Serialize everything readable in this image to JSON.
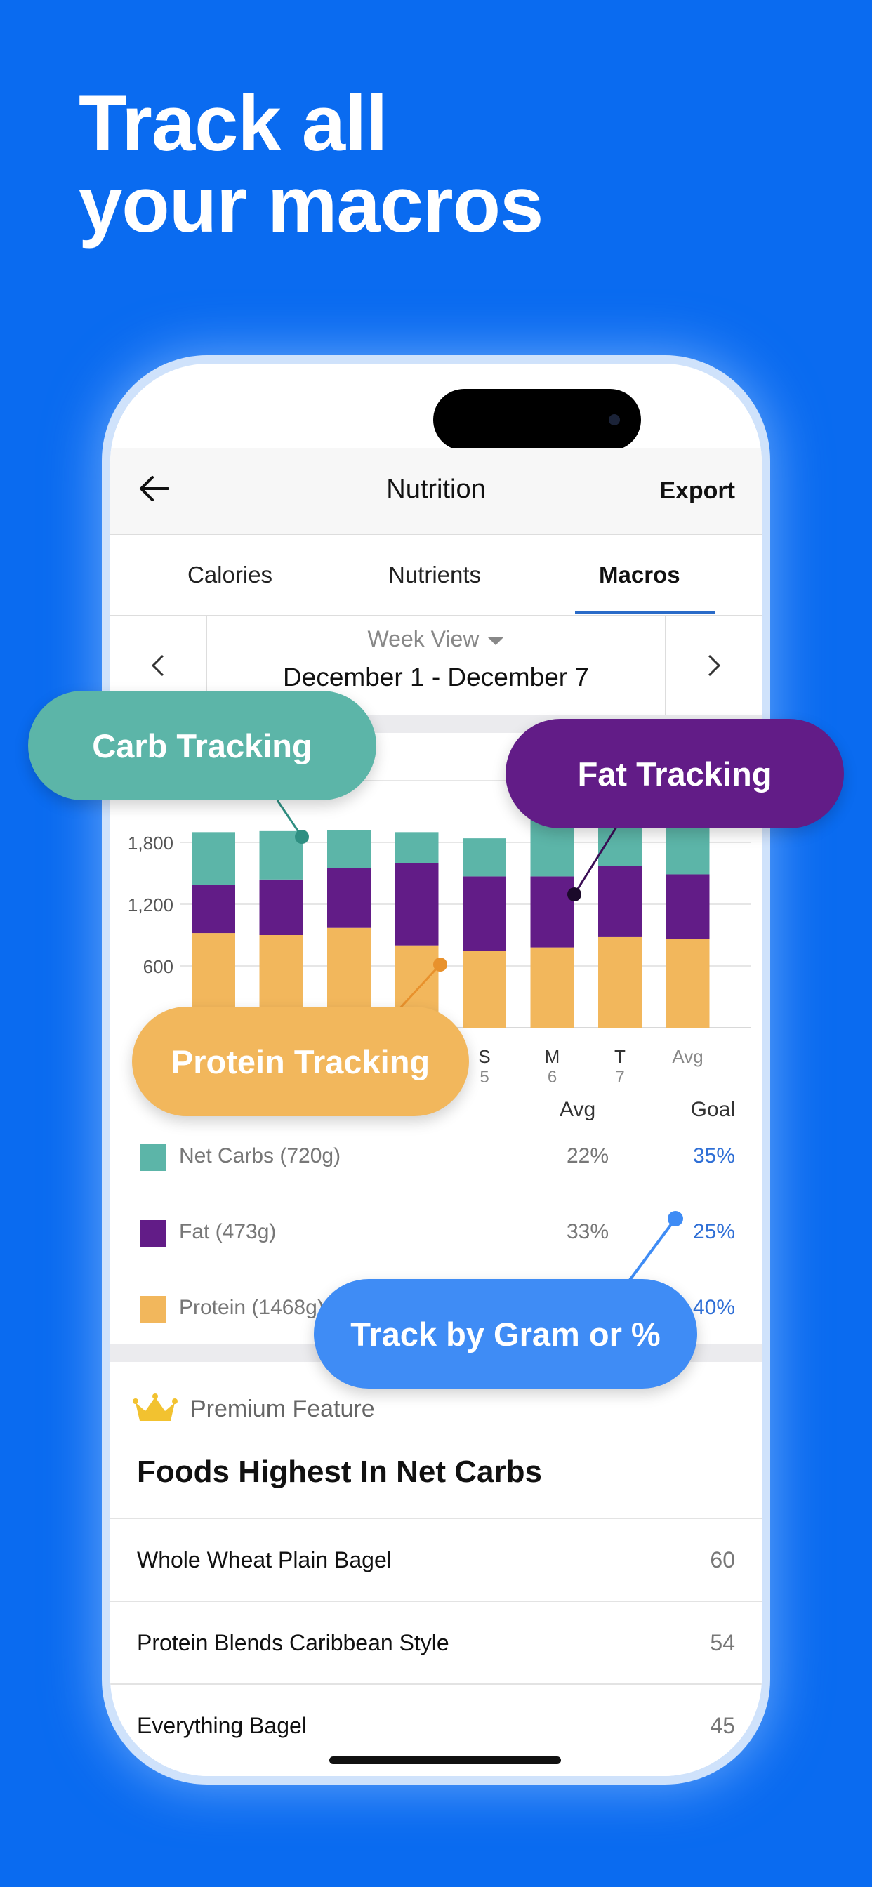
{
  "headline": {
    "line1": "Track all",
    "line2": "your macros"
  },
  "nav": {
    "title": "Nutrition",
    "export_label": "Export",
    "back_icon": "arrow-left-icon"
  },
  "tabs": [
    {
      "label": "Calories",
      "active": false
    },
    {
      "label": "Nutrients",
      "active": false
    },
    {
      "label": "Macros",
      "active": true
    }
  ],
  "date": {
    "view_label": "Week View",
    "range": "December 1 - December 7"
  },
  "legend": {
    "avg_header": "Avg",
    "goal_header": "Goal",
    "items": [
      {
        "label": "Net Carbs (720g)",
        "avg": "22%",
        "goal": "35%",
        "color": "#5cb5a8"
      },
      {
        "label": "Fat (473g)",
        "avg": "33%",
        "goal": "25%",
        "color": "#621c87"
      },
      {
        "label": "Protein (1468g)",
        "avg": "",
        "goal": "40%",
        "color": "#f2b75c"
      }
    ]
  },
  "callouts": {
    "carb": "Carb Tracking",
    "fat": "Fat Tracking",
    "protein": "Protein Tracking",
    "gram": "Track by Gram or %"
  },
  "premium": {
    "label": "Premium Feature",
    "icon": "crown-icon",
    "title": "Foods Highest In Net Carbs",
    "foods": [
      {
        "name": "Whole Wheat Plain Bagel",
        "value": "60"
      },
      {
        "name": "Protein Blends Caribbean Style",
        "value": "54"
      },
      {
        "name": "Everything Bagel",
        "value": "45"
      }
    ]
  },
  "colors": {
    "background": "#0a6bf0",
    "carb": "#5cb5a8",
    "fat": "#621c87",
    "protein": "#f2b75c",
    "goal_text": "#2f6fd6",
    "gram_callout": "#3f8cf5"
  },
  "chart_data": {
    "type": "bar",
    "stacked": true,
    "categories": [
      "",
      "",
      "",
      "",
      "S 5",
      "M 6",
      "T 7",
      "Avg"
    ],
    "x_tick_labels": [
      {
        "day": "S",
        "date": "5"
      },
      {
        "day": "M",
        "date": "6"
      },
      {
        "day": "T",
        "date": "7"
      },
      {
        "day": "Avg",
        "date": ""
      }
    ],
    "series": [
      {
        "name": "Protein",
        "color": "#f2b75c",
        "values": [
          920,
          900,
          970,
          800,
          750,
          780,
          880,
          860
        ]
      },
      {
        "name": "Fat",
        "color": "#621c87",
        "values": [
          470,
          540,
          580,
          800,
          720,
          690,
          690,
          630
        ]
      },
      {
        "name": "Net Carbs",
        "color": "#5cb5a8",
        "values": [
          510,
          470,
          370,
          300,
          370,
          870,
          870,
          870
        ]
      }
    ],
    "yticks": [
      600,
      1200,
      1800
    ],
    "ylim": [
      0,
      2400
    ],
    "grid": true
  }
}
